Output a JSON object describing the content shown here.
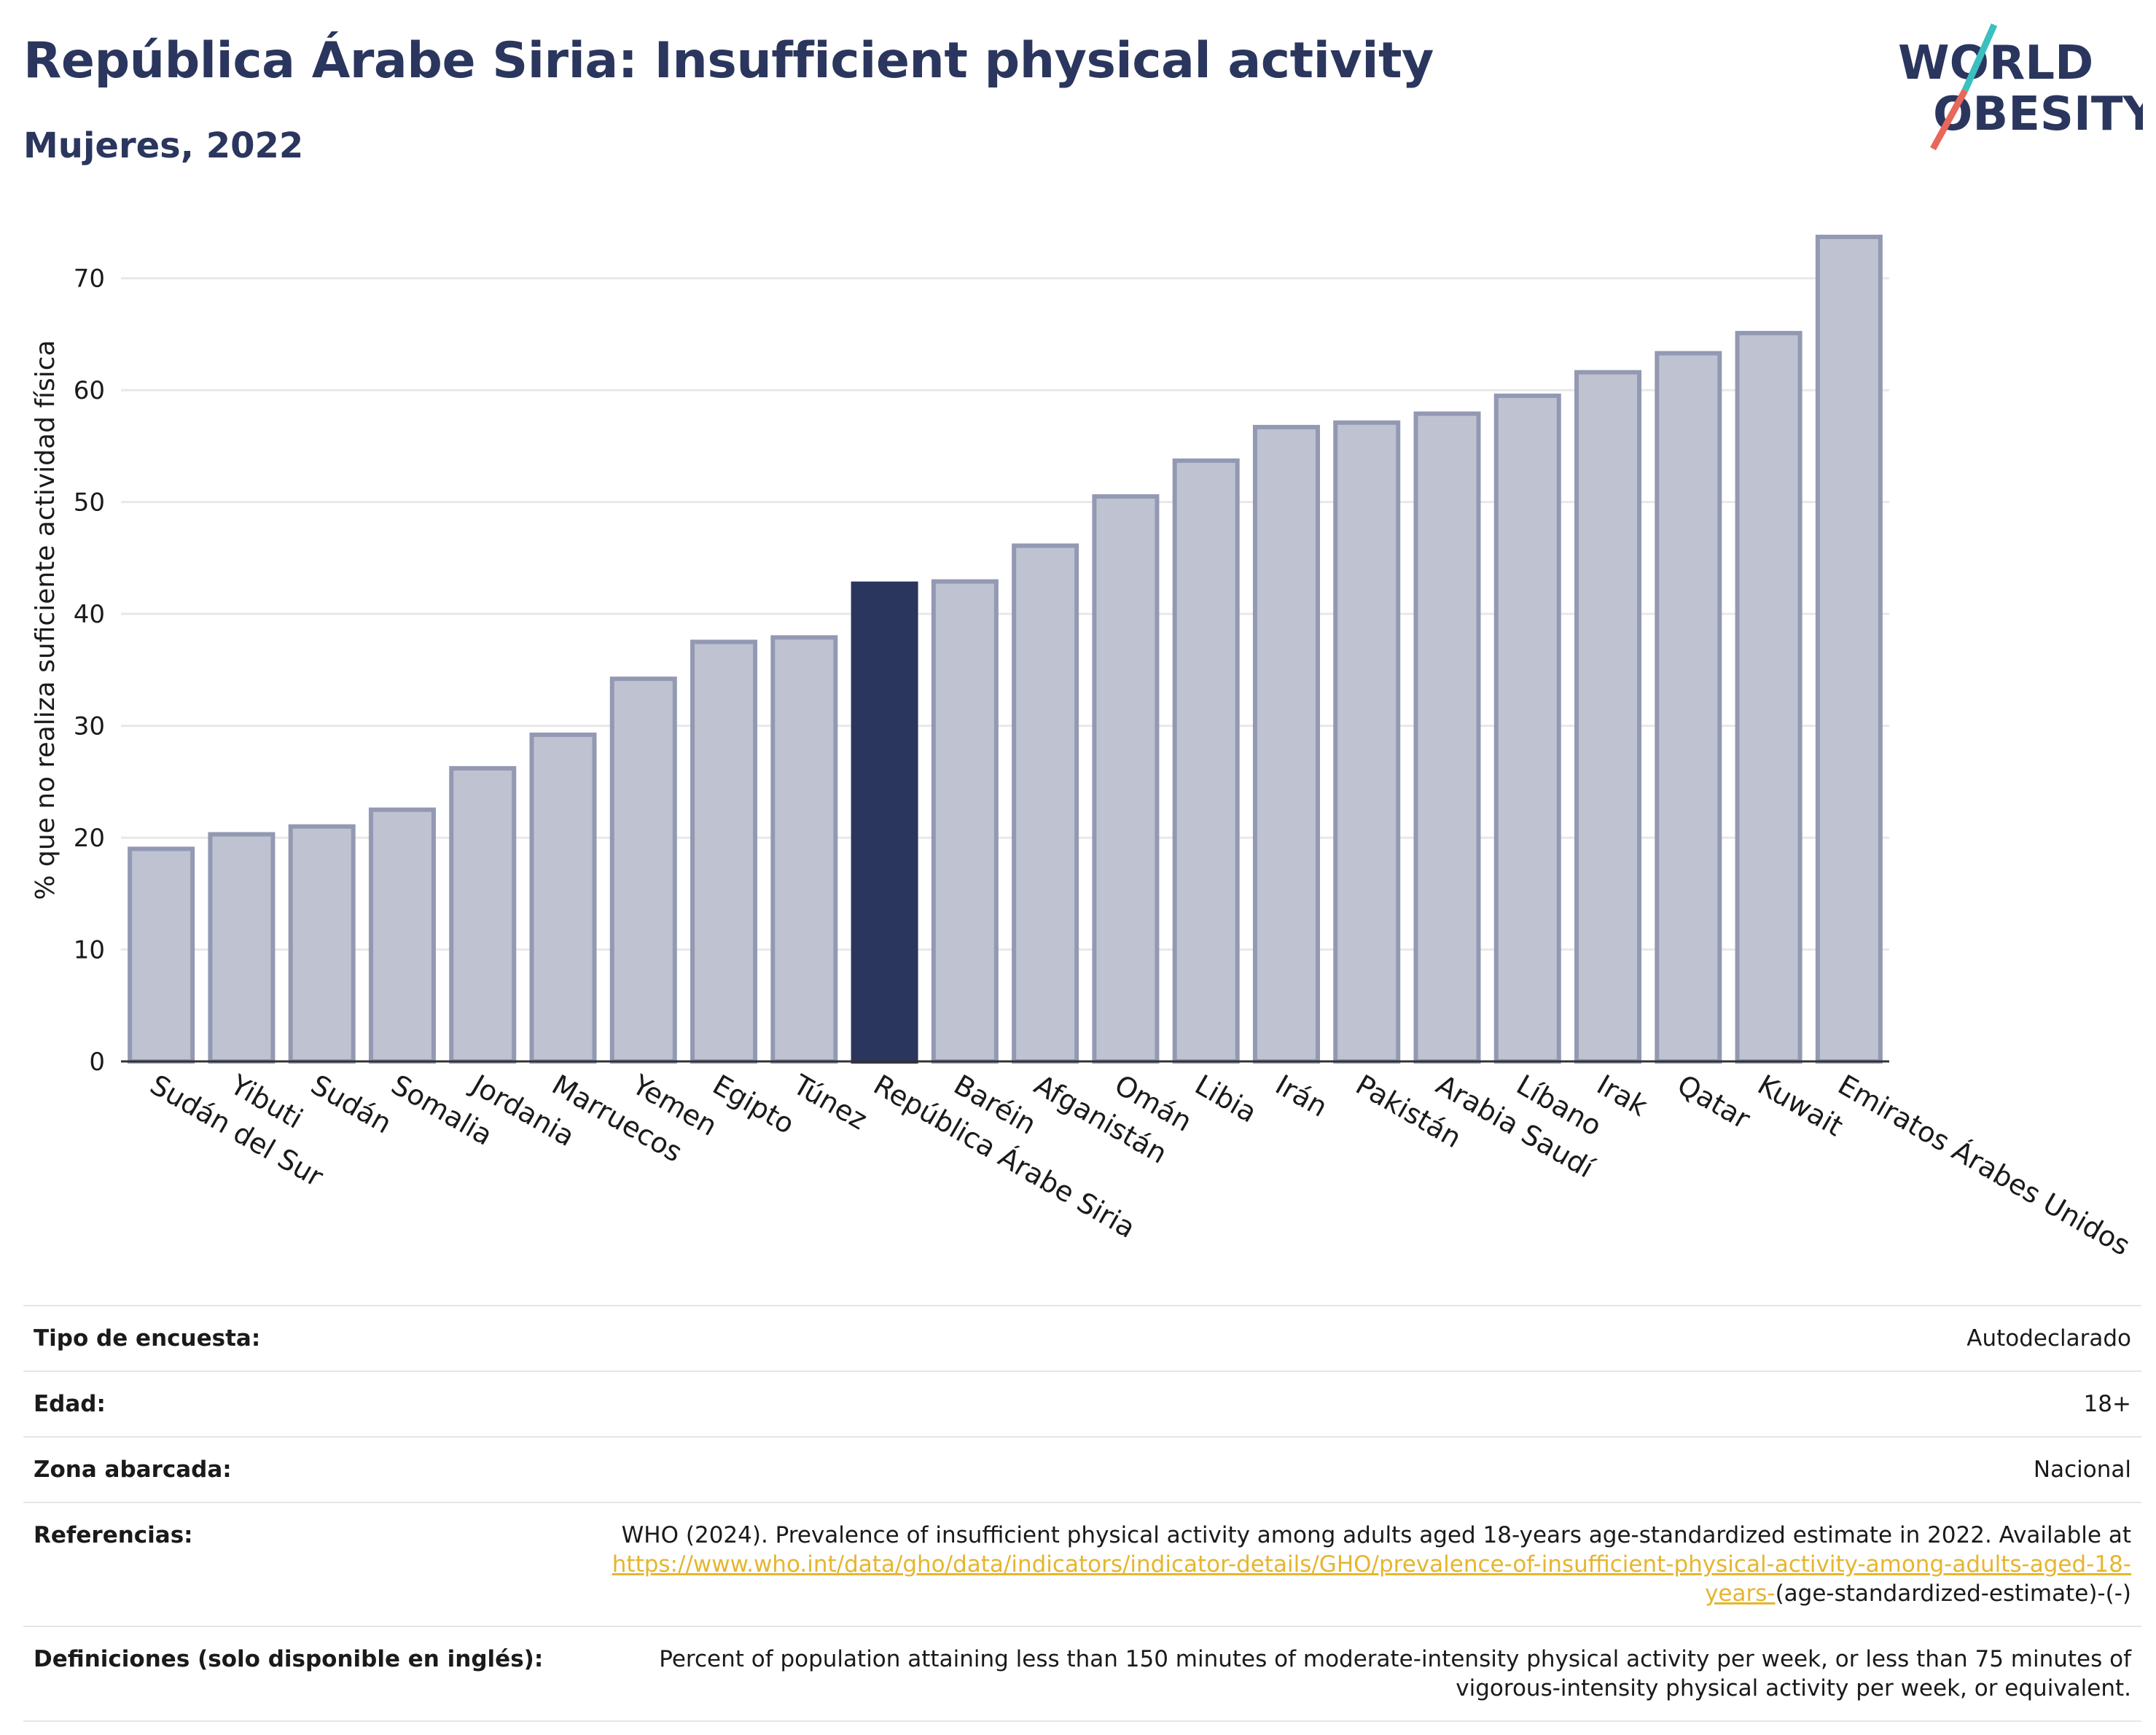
{
  "header": {
    "title": "República Árabe Siria: Insufficient physical activity",
    "subtitle": "Mujeres, 2022"
  },
  "logo": {
    "line1": "WORLD",
    "line2": "OBESITY",
    "colors": {
      "text": "#2b365e",
      "slash_top": "#3bbfbf",
      "slash_bottom": "#e8675a"
    }
  },
  "chart_data": {
    "type": "bar",
    "ylabel": "% que no realiza suficiente actividad física",
    "ylim": [
      0,
      75
    ],
    "yticks": [
      0,
      10,
      20,
      30,
      40,
      50,
      60,
      70
    ],
    "grid": true,
    "highlight": "República Árabe Siria",
    "colors": {
      "bar": "#bfc2d0",
      "bar_edge": "#9399b3",
      "highlight": "#2b365e"
    },
    "categories": [
      "Sudán del Sur",
      "Yibuti",
      "Sudán",
      "Somalia",
      "Jordania",
      "Marruecos",
      "Yemen",
      "Egipto",
      "Túnez",
      "República Árabe Siria",
      "Baréin",
      "Afganistán",
      "Omán",
      "Libia",
      "Irán",
      "Pakistán",
      "Arabia Saudí",
      "Líbano",
      "Irak",
      "Qatar",
      "Kuwait",
      "Emiratos Árabes Unidos"
    ],
    "values": [
      19,
      20.3,
      21,
      22.5,
      26.2,
      29.2,
      34.2,
      37.5,
      37.9,
      42.7,
      42.9,
      46.1,
      50.5,
      53.7,
      56.7,
      57.1,
      57.9,
      59.5,
      61.6,
      63.3,
      65.1,
      73.7
    ]
  },
  "info": {
    "rows": [
      {
        "key": "Tipo de encuesta:",
        "value": "Autodeclarado"
      },
      {
        "key": "Edad:",
        "value": "18+"
      },
      {
        "key": "Zona abarcada:",
        "value": "Nacional"
      }
    ],
    "references": {
      "key": "Referencias:",
      "text": "WHO (2024). Prevalence of insufficient physical activity among adults aged 18-years age-standardized estimate in 2022. Available at",
      "link": "https://www.who.int/data/gho/data/indicators/indicator-details/GHO/prevalence-of-insufficient-physical-activity-among-adults-aged-18-years-",
      "suffix": "(age-standardized-estimate)-(-)"
    },
    "definitions": {
      "key": "Definiciones (solo disponible en inglés):",
      "value": "Percent of population attaining less than 150 minutes of moderate-intensity physical activity per week, or less than 75 minutes of vigorous-intensity physical activity per week, or equivalent."
    }
  }
}
